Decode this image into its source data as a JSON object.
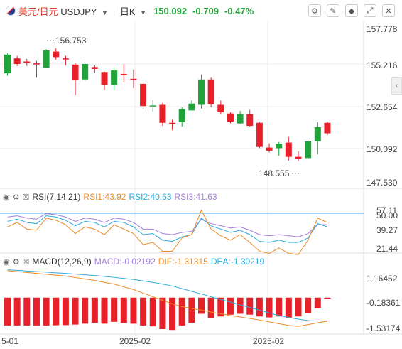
{
  "header": {
    "symbol_cn": "美元/日元",
    "symbol_code": "USDJPY",
    "timeframe": "日K",
    "last_price": "150.092",
    "change": "-0.709",
    "change_pct": "-0.47%",
    "tool_icons": [
      "settings-slider-icon",
      "pencil-icon",
      "eraser-icon",
      "expand-icon",
      "close-icon"
    ],
    "side_toggle": "‹"
  },
  "colors": {
    "up": "#e8202a",
    "down": "#1fa33a",
    "rsi1": "#f08a24",
    "rsi2": "#2eaadc",
    "rsi3": "#a27fd8",
    "ma": "#4a7fd6"
  },
  "price_axis": {
    "labels": [
      "157.778",
      "155.216",
      "152.654",
      "150.092",
      "147.530"
    ]
  },
  "annotations": {
    "high": "156.753",
    "low": "148.555"
  },
  "rsi": {
    "title": "RSI(7,14,21)",
    "rsi1_label": "RSI1:43.92",
    "rsi2_label": "RSI2:40.63",
    "rsi3_label": "RSI3:41.63",
    "axis": [
      "57.11",
      "50.00",
      "39.27",
      "21.44"
    ]
  },
  "macd": {
    "title": "MACD(12,26,9)",
    "macd_label": "MACD:-0.02192",
    "dif_label": "DIF:-1.31315",
    "dea_label": "DEA:-1.30219",
    "axis": [
      "1.16452",
      "-0.18361",
      "-1.53174"
    ]
  },
  "time_axis": [
    "5-01",
    "2025-02",
    "2025-02"
  ],
  "chart_data": {
    "type": "candlestick",
    "ylim": [
      146.4,
      158.8
    ],
    "candles": [
      {
        "o": 154.95,
        "c": 156.45,
        "h": 156.55,
        "l": 154.75
      },
      {
        "o": 156.15,
        "c": 155.7,
        "h": 156.35,
        "l": 155.55
      },
      {
        "o": 155.9,
        "c": 155.8,
        "h": 156.1,
        "l": 155.55
      },
      {
        "o": 155.75,
        "c": 155.7,
        "h": 155.95,
        "l": 154.6
      },
      {
        "o": 155.4,
        "c": 156.8,
        "h": 156.9,
        "l": 155.35
      },
      {
        "o": 156.7,
        "c": 156.25,
        "h": 156.95,
        "l": 156.05
      },
      {
        "o": 156.15,
        "c": 156.1,
        "h": 156.35,
        "l": 155.6
      },
      {
        "o": 155.65,
        "c": 154.4,
        "h": 155.8,
        "l": 153.2
      },
      {
        "o": 154.45,
        "c": 155.7,
        "h": 155.85,
        "l": 154.3
      },
      {
        "o": 155.45,
        "c": 155.3,
        "h": 155.6,
        "l": 154.95
      },
      {
        "o": 155.05,
        "c": 154.0,
        "h": 155.1,
        "l": 153.6
      },
      {
        "o": 154.0,
        "c": 155.2,
        "h": 155.4,
        "l": 153.6
      },
      {
        "o": 154.9,
        "c": 154.85,
        "h": 155.7,
        "l": 154.2
      },
      {
        "o": 154.5,
        "c": 154.45,
        "h": 155.25,
        "l": 153.75
      },
      {
        "o": 154.1,
        "c": 152.3,
        "h": 154.1,
        "l": 152.1
      },
      {
        "o": 152.3,
        "c": 152.35,
        "h": 152.8,
        "l": 151.85
      },
      {
        "o": 152.4,
        "c": 150.95,
        "h": 152.55,
        "l": 150.7
      },
      {
        "o": 150.95,
        "c": 150.85,
        "h": 151.2,
        "l": 150.35
      },
      {
        "o": 151.0,
        "c": 152.05,
        "h": 152.2,
        "l": 150.65
      },
      {
        "o": 151.95,
        "c": 152.5,
        "h": 152.75,
        "l": 151.95
      },
      {
        "o": 152.4,
        "c": 154.45,
        "h": 154.85,
        "l": 152.1
      },
      {
        "o": 154.45,
        "c": 152.45,
        "h": 154.6,
        "l": 152.2
      },
      {
        "o": 152.4,
        "c": 151.8,
        "h": 152.75,
        "l": 151.65
      },
      {
        "o": 151.7,
        "c": 151.05,
        "h": 151.8,
        "l": 150.9
      },
      {
        "o": 150.9,
        "c": 151.65,
        "h": 151.9,
        "l": 150.85
      },
      {
        "o": 151.65,
        "c": 150.7,
        "h": 152.0,
        "l": 150.65
      },
      {
        "o": 150.95,
        "c": 149.0,
        "h": 151.0,
        "l": 148.9
      },
      {
        "o": 148.95,
        "c": 148.7,
        "h": 149.3,
        "l": 148.55
      },
      {
        "o": 148.9,
        "c": 149.25,
        "h": 149.4,
        "l": 148.3
      },
      {
        "o": 149.35,
        "c": 148.2,
        "h": 149.8,
        "l": 147.9
      },
      {
        "o": 148.2,
        "c": 148.05,
        "h": 148.65,
        "l": 147.85
      },
      {
        "o": 148.1,
        "c": 149.45,
        "h": 149.6,
        "l": 148.0
      },
      {
        "o": 149.45,
        "c": 150.6,
        "h": 151.0,
        "l": 148.4
      },
      {
        "o": 150.95,
        "c": 150.1,
        "h": 151.05,
        "l": 149.95
      }
    ],
    "rsi1": [
      40,
      44,
      38,
      37,
      48,
      46,
      42,
      34,
      40,
      38,
      33,
      42,
      38,
      34,
      24,
      26,
      18,
      18,
      30,
      33,
      55,
      38,
      32,
      28,
      33,
      26,
      18,
      16,
      21,
      16,
      15,
      28,
      48,
      44
    ],
    "rsi2": [
      45,
      47,
      44,
      43,
      50,
      49,
      46,
      41,
      45,
      44,
      40,
      45,
      44,
      40,
      33,
      34,
      28,
      27,
      31,
      33,
      48,
      41,
      38,
      35,
      37,
      33,
      27,
      26,
      28,
      26,
      26,
      30,
      43,
      40
    ],
    "rsi3": [
      49,
      50,
      48,
      47,
      52,
      51,
      49,
      45,
      48,
      47,
      44,
      48,
      47,
      44,
      38,
      38,
      34,
      33,
      35,
      36,
      47,
      43,
      41,
      39,
      40,
      37,
      33,
      32,
      33,
      32,
      31,
      34,
      42,
      42
    ],
    "rsi_ylim": [
      17,
      62
    ],
    "macd_hist": [
      -1.55,
      -1.55,
      -1.55,
      -1.55,
      -1.55,
      -1.54,
      -1.53,
      -1.5,
      -1.45,
      -1.4,
      -1.45,
      -1.35,
      -1.4,
      -1.45,
      -1.55,
      -1.6,
      -1.75,
      -1.8,
      -1.55,
      -1.4,
      -0.9,
      -1.15,
      -1.05,
      -0.95,
      -0.9,
      -0.95,
      -1.05,
      -1.1,
      -1.05,
      -1.15,
      -1.05,
      -0.85,
      -0.6,
      -0.05
    ],
    "dif": [
      1.5,
      1.45,
      1.4,
      1.35,
      1.3,
      1.25,
      1.2,
      1.12,
      1.04,
      0.96,
      0.85,
      0.75,
      0.6,
      0.45,
      0.25,
      0.05,
      -0.15,
      -0.35,
      -0.5,
      -0.6,
      -0.7,
      -0.8,
      -0.9,
      -1.0,
      -1.08,
      -1.16,
      -1.25,
      -1.35,
      -1.45,
      -1.55,
      -1.6,
      -1.5,
      -1.4,
      -1.31
    ],
    "dea": [
      1.55,
      1.52,
      1.48,
      1.45,
      1.42,
      1.38,
      1.35,
      1.31,
      1.27,
      1.23,
      1.18,
      1.13,
      1.07,
      1.01,
      0.93,
      0.85,
      0.75,
      0.65,
      0.5,
      0.35,
      0.2,
      0.05,
      -0.1,
      -0.25,
      -0.4,
      -0.55,
      -0.7,
      -0.85,
      -1.0,
      -1.1,
      -1.2,
      -1.28,
      -1.3,
      -1.3
    ],
    "macd_ylim": [
      -1.95,
      1.85
    ]
  }
}
